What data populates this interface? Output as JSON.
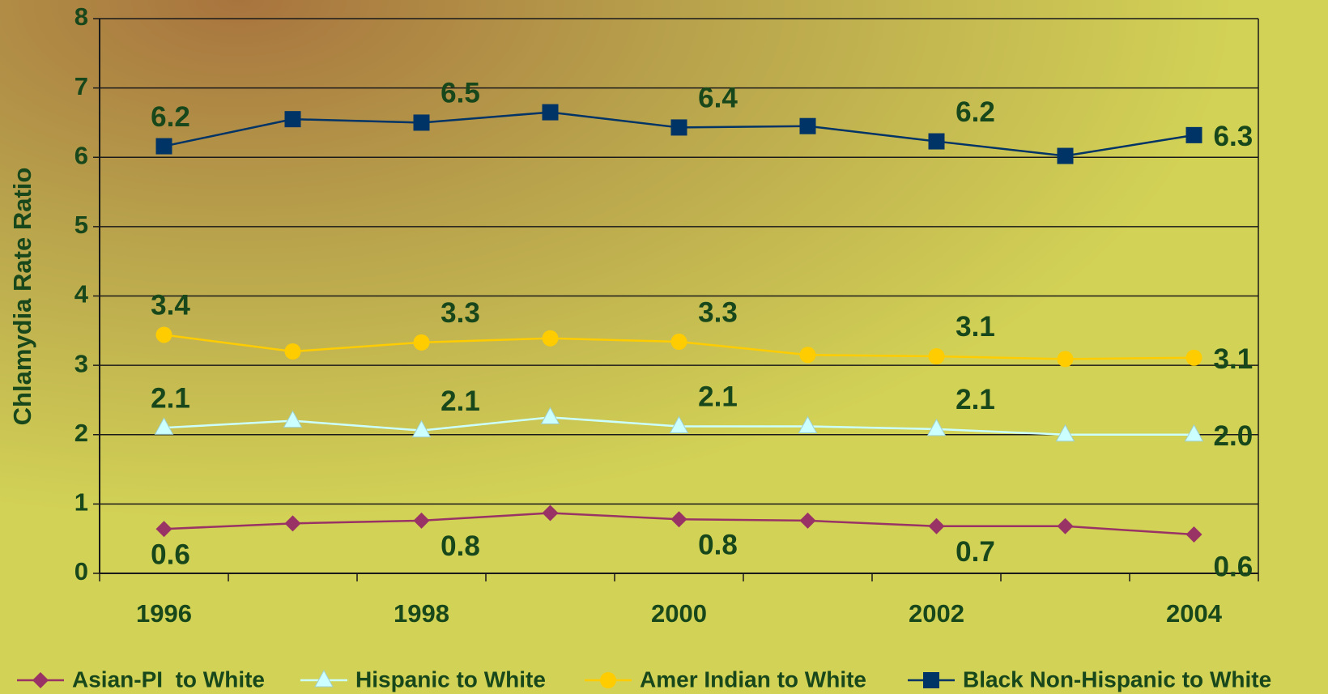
{
  "chart_data": {
    "type": "line",
    "y_label": "Chlamydia Rate Ratio",
    "categories": [
      1996,
      null,
      1998,
      null,
      2000,
      null,
      2002,
      null,
      2004
    ],
    "ylim": [
      0,
      8
    ],
    "yticks": [
      0,
      1,
      2,
      3,
      4,
      5,
      6,
      7,
      8
    ],
    "grid": true,
    "legend": "bottom",
    "series": [
      {
        "name": "Asian-PI  to White",
        "color": "#993366",
        "marker": "diamond",
        "values": [
          0.64,
          0.72,
          0.76,
          0.87,
          0.78,
          0.76,
          0.68,
          0.68,
          0.56
        ],
        "value_labels": [
          "0.6",
          null,
          "0.8",
          null,
          "0.8",
          null,
          "0.7",
          null,
          "0.6"
        ]
      },
      {
        "name": "Hispanic to White",
        "color": "#ccffff",
        "marker": "triangle",
        "values": [
          2.1,
          2.2,
          2.06,
          2.25,
          2.12,
          2.12,
          2.08,
          2.0,
          2.0
        ],
        "value_labels": [
          "2.1",
          null,
          "2.1",
          null,
          "2.1",
          null,
          "2.1",
          null,
          "2.0"
        ]
      },
      {
        "name": "Amer Indian to White",
        "color": "#ffcc00",
        "marker": "circle",
        "values": [
          3.44,
          3.2,
          3.33,
          3.39,
          3.34,
          3.15,
          3.13,
          3.09,
          3.11
        ],
        "value_labels": [
          "3.4",
          null,
          "3.3",
          null,
          "3.3",
          null,
          "3.1",
          null,
          "3.1"
        ]
      },
      {
        "name": "Black Non-Hispanic to White",
        "color": "#003366",
        "marker": "square",
        "values": [
          6.16,
          6.55,
          6.5,
          6.65,
          6.43,
          6.45,
          6.23,
          6.02,
          6.32
        ],
        "value_labels": [
          "6.2",
          null,
          "6.5",
          null,
          "6.4",
          null,
          "6.2",
          null,
          "6.3"
        ]
      }
    ]
  }
}
